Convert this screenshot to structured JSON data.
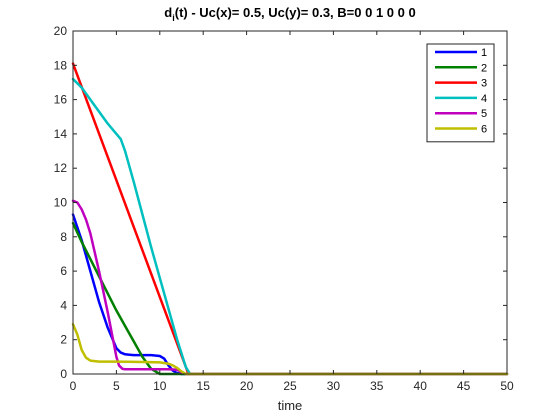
{
  "chart_data": {
    "type": "line",
    "title": "d_i(t) -    Uc(x)= 0.5, Uc(y)= 0.3, B=0  0  1  0  0  0",
    "title_main": "d",
    "title_sub": "i",
    "title_rest": "(t) -    Uc(x)= 0.5, Uc(y)= 0.3, B=0  0  1  0  0  0",
    "xlabel": "time",
    "ylabel": "",
    "xlim": [
      0,
      50
    ],
    "ylim": [
      0,
      20
    ],
    "xticks": [
      0,
      5,
      10,
      15,
      20,
      25,
      30,
      35,
      40,
      45,
      50
    ],
    "yticks": [
      0,
      2,
      4,
      6,
      8,
      10,
      12,
      14,
      16,
      18,
      20
    ],
    "grid": false,
    "legend_position": "top-right",
    "series": [
      {
        "name": "1",
        "color": "#0000ff",
        "x": [
          0,
          1,
          2,
          3,
          4,
          5,
          5.5,
          6,
          7,
          8,
          9,
          10,
          10.5,
          11,
          11.5,
          12,
          12.5,
          13,
          50
        ],
        "y": [
          9.3,
          7.8,
          6.0,
          4.2,
          2.7,
          1.5,
          1.25,
          1.15,
          1.1,
          1.1,
          1.1,
          1.05,
          0.9,
          0.5,
          0.2,
          0.05,
          0.0,
          0.0,
          0.0
        ]
      },
      {
        "name": "2",
        "color": "#008000",
        "x": [
          0,
          1,
          2,
          3,
          4,
          5,
          6,
          7,
          8,
          9,
          10,
          10.5,
          11,
          50
        ],
        "y": [
          8.8,
          7.7,
          6.7,
          5.7,
          4.7,
          3.7,
          2.8,
          1.9,
          1.0,
          0.3,
          0.0,
          0.0,
          0.0,
          0.0
        ]
      },
      {
        "name": "3",
        "color": "#ff0000",
        "x": [
          0,
          13.3,
          13.5,
          50
        ],
        "y": [
          18.1,
          0.0,
          0.0,
          0.0
        ]
      },
      {
        "name": "4",
        "color": "#00bfbf",
        "x": [
          0,
          1,
          2,
          3,
          4,
          5,
          5.5,
          6,
          7,
          8,
          9,
          10,
          11,
          12,
          13,
          13.5,
          50
        ],
        "y": [
          17.2,
          16.7,
          16.0,
          15.3,
          14.6,
          14.0,
          13.7,
          13.0,
          11.2,
          9.3,
          7.4,
          5.6,
          3.8,
          2.0,
          0.4,
          0.0,
          0.0
        ]
      },
      {
        "name": "5",
        "color": "#bf00bf",
        "x": [
          0,
          0.5,
          1,
          1.5,
          2,
          3,
          4,
          4.5,
          5,
          5.3,
          5.7,
          6,
          7,
          9,
          11,
          12,
          12.5,
          13,
          50
        ],
        "y": [
          10.1,
          10.0,
          9.6,
          9.0,
          8.2,
          6.0,
          3.6,
          2.3,
          1.0,
          0.5,
          0.3,
          0.28,
          0.28,
          0.28,
          0.28,
          0.25,
          0.1,
          0.0,
          0.0
        ]
      },
      {
        "name": "6",
        "color": "#bfbf00",
        "x": [
          0,
          0.5,
          1,
          1.5,
          2,
          3,
          5,
          8,
          10,
          11,
          11.5,
          12,
          12.5,
          13,
          50
        ],
        "y": [
          2.9,
          2.3,
          1.4,
          0.95,
          0.78,
          0.72,
          0.72,
          0.7,
          0.68,
          0.6,
          0.5,
          0.35,
          0.15,
          0.0,
          0.0
        ]
      }
    ]
  }
}
